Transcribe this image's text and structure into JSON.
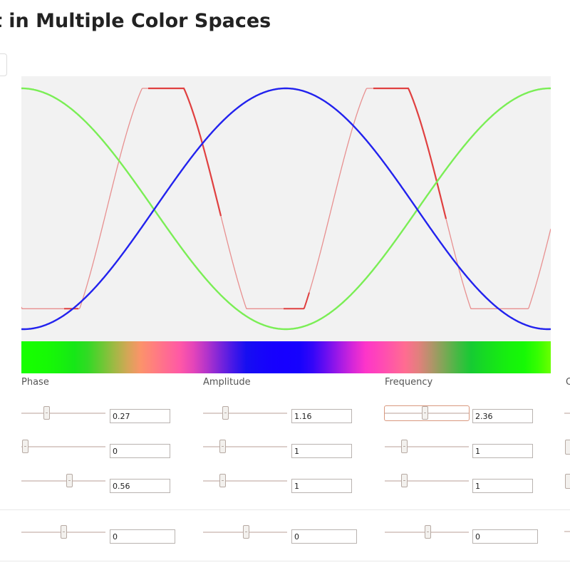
{
  "header": {
    "title": "t in Multiple Color Spaces"
  },
  "colors": {
    "red": "#e04040",
    "green": "#7aee55",
    "blue": "#2222ee",
    "plot_bg": "#f2f2f2"
  },
  "controls": {
    "columns": [
      {
        "label": "Phase",
        "values": [
          "0.27",
          "0",
          "0.56"
        ],
        "extra": "0"
      },
      {
        "label": "Amplitude",
        "values": [
          "1.16",
          "1",
          "1"
        ],
        "extra": "0"
      },
      {
        "label": "Frequency",
        "values": [
          "2.36",
          "1",
          "1"
        ],
        "extra": "0"
      },
      {
        "label": "O"
      }
    ]
  }
}
